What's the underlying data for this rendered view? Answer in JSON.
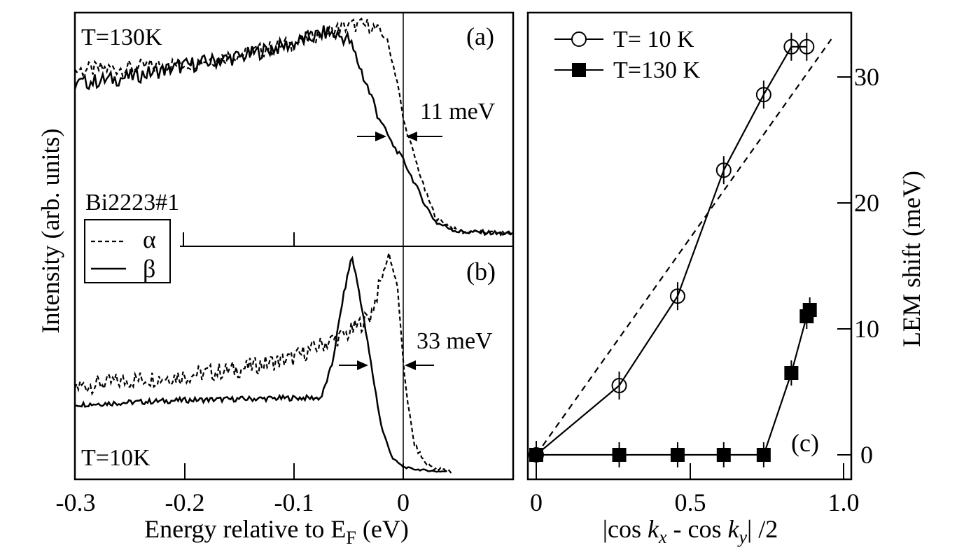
{
  "left": {
    "xlabel_main": "Energy relative to E",
    "xlabel_sub": "F",
    "xlabel_tail": " (eV)",
    "ylabel": "Intensity (arb. units)",
    "xticks": [
      "-0.3",
      "-0.2",
      "-0.1",
      "0"
    ],
    "sample": "Bi2223#1",
    "legend": [
      {
        "label": "α",
        "style": "dashed"
      },
      {
        "label": "β",
        "style": "solid"
      }
    ]
  },
  "panel_a": {
    "label": "(a)",
    "temp": "T=130K",
    "gap": "11 meV"
  },
  "panel_b": {
    "label": "(b)",
    "temp": "T=10K",
    "gap": "33 meV"
  },
  "panel_c": {
    "label": "(c)",
    "xlabel": "|cos kx - cos ky| /2",
    "xlabel_parts": [
      "|cos ",
      "k",
      "x",
      " - cos ",
      "k",
      "y",
      "| /2"
    ],
    "ylabel": "LEM shift (meV)",
    "xticks": [
      "0",
      "0.5",
      "1.0"
    ],
    "yticks": [
      "0",
      "10",
      "20",
      "30"
    ]
  },
  "chart_data": [
    {
      "type": "line",
      "panel": "(a)",
      "x_range": [
        -0.3,
        0.1
      ],
      "series": [
        {
          "name": "α",
          "style": "dashed",
          "x": [
            -0.3,
            -0.25,
            -0.2,
            -0.15,
            -0.1,
            -0.07,
            -0.05,
            -0.03,
            -0.015,
            -0.005,
            0.0,
            0.01,
            0.02,
            0.03,
            0.05,
            0.1
          ],
          "y": [
            0.78,
            0.79,
            0.81,
            0.85,
            0.9,
            0.95,
            0.98,
            0.98,
            0.92,
            0.72,
            0.56,
            0.4,
            0.24,
            0.12,
            0.06,
            0.05
          ]
        },
        {
          "name": "β",
          "style": "solid",
          "x": [
            -0.3,
            -0.25,
            -0.2,
            -0.15,
            -0.1,
            -0.07,
            -0.05,
            -0.04,
            -0.03,
            -0.02,
            -0.01,
            0.0,
            0.01,
            0.02,
            0.03,
            0.05,
            0.1
          ],
          "y": [
            0.72,
            0.75,
            0.8,
            0.84,
            0.9,
            0.95,
            0.92,
            0.8,
            0.67,
            0.55,
            0.45,
            0.38,
            0.28,
            0.18,
            0.1,
            0.06,
            0.05
          ]
        }
      ]
    },
    {
      "type": "line",
      "panel": "(b)",
      "x_range": [
        -0.3,
        0.05
      ],
      "series": [
        {
          "name": "α",
          "style": "dashed",
          "x": [
            -0.3,
            -0.25,
            -0.2,
            -0.15,
            -0.1,
            -0.07,
            -0.05,
            -0.03,
            -0.02,
            -0.013,
            -0.005,
            0.0,
            0.005,
            0.01,
            0.02,
            0.03,
            0.045
          ],
          "y": [
            0.4,
            0.43,
            0.45,
            0.48,
            0.53,
            0.6,
            0.64,
            0.72,
            0.88,
            1.0,
            0.84,
            0.5,
            0.3,
            0.14,
            0.06,
            0.03,
            0.02
          ]
        },
        {
          "name": "β",
          "style": "solid",
          "x": [
            -0.3,
            -0.2,
            -0.1,
            -0.075,
            -0.065,
            -0.055,
            -0.047,
            -0.04,
            -0.03,
            -0.02,
            -0.01,
            0.0,
            0.01,
            0.03,
            0.04
          ],
          "y": [
            0.32,
            0.34,
            0.35,
            0.35,
            0.5,
            0.8,
            0.99,
            0.82,
            0.52,
            0.22,
            0.08,
            0.04,
            0.03,
            0.02,
            0.02
          ]
        }
      ]
    },
    {
      "type": "line",
      "panel": "(c)",
      "xlim": [
        0,
        1.0
      ],
      "ylim": [
        -1.5,
        35
      ],
      "series": [
        {
          "name": "T= 10 K",
          "marker": "open-circle",
          "x": [
            0,
            0.27,
            0.46,
            0.61,
            0.74,
            0.83,
            0.88
          ],
          "y": [
            0,
            5.5,
            12.6,
            22.6,
            28.6,
            32.4,
            32.4
          ]
        },
        {
          "name": "T=130 K",
          "marker": "filled-square",
          "x": [
            0,
            0.27,
            0.46,
            0.61,
            0.74,
            0.83,
            0.88,
            0.89
          ],
          "y": [
            0,
            0,
            0,
            0,
            0,
            6.5,
            11.0,
            11.5
          ]
        },
        {
          "style": "dashed",
          "x": [
            0,
            0.96
          ],
          "y": [
            0,
            33
          ]
        }
      ]
    }
  ]
}
